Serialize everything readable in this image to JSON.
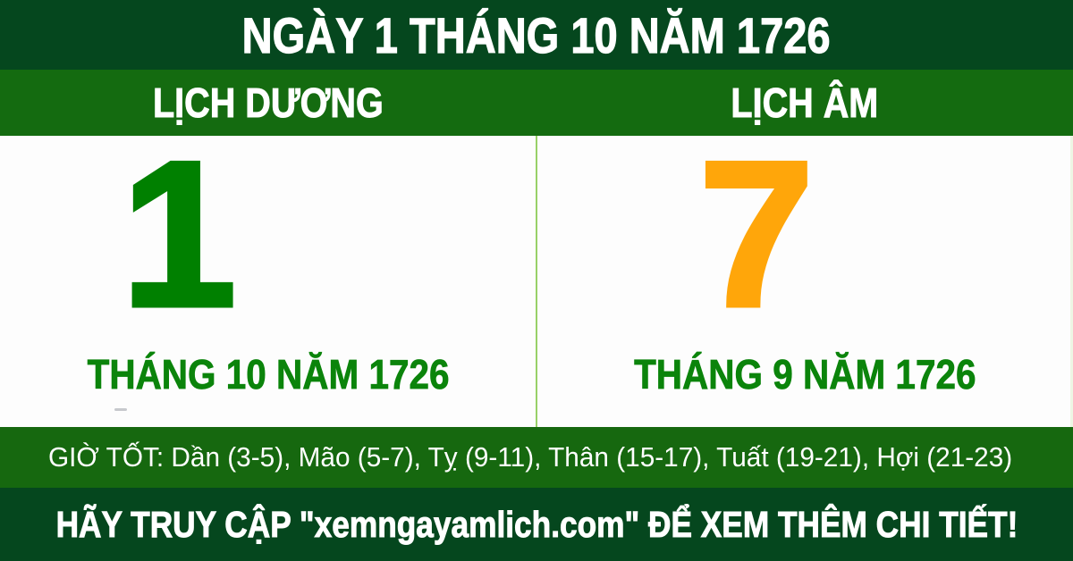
{
  "colors": {
    "dark_green": "#05471e",
    "green": "#146b10",
    "hours_bar_green": "#16680f",
    "solar_day_green": "#008000",
    "lunar_day_orange": "#ffa60a",
    "month_text_green": "#0b840b",
    "divider_light_green": "#98d168",
    "text_white": "#ffffff",
    "panel_white": "#fdfdfd"
  },
  "banner": {
    "title": "NGÀY 1 THÁNG 10 NĂM 1726"
  },
  "calendar_headers": {
    "solar_label": "LỊCH DƯƠNG",
    "lunar_label": "LỊCH ÂM"
  },
  "solar_panel": {
    "day": "1",
    "month_year": "THÁNG 10 NĂM 1726"
  },
  "lunar_panel": {
    "day": "7",
    "month_year": "THÁNG 9 NĂM 1726"
  },
  "good_hours": {
    "label": "GIỜ TỐT:",
    "entries": [
      "Dần (3-5)",
      "Mão (5-7)",
      "Tỵ (9-11)",
      "Thân (15-17)",
      "Tuất (19-21)",
      "Hợi (21-23)"
    ]
  },
  "footer": {
    "message": "HÃY TRUY CẬP \"xemngayamlich.com\" ĐỂ XEM THÊM CHI TIẾT!",
    "website": "xemngayamlich.com"
  }
}
